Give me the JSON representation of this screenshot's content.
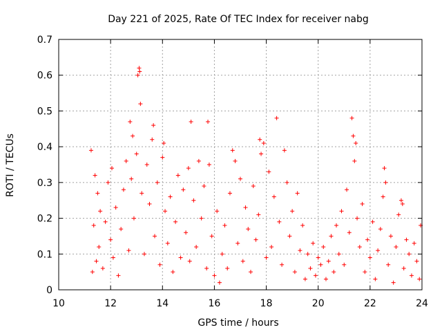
{
  "chart_data": {
    "type": "scatter",
    "title": "Day 221 of 2025, Rate Of TEC Index for receiver nabg",
    "xlabel": "GPS time / hours",
    "ylabel": "ROTI / TECUs",
    "xlim": [
      10,
      24
    ],
    "ylim": [
      0,
      0.7
    ],
    "xticks": [
      10,
      12,
      14,
      16,
      18,
      20,
      22,
      24
    ],
    "yticks": [
      0,
      0.1,
      0.2,
      0.3,
      0.4,
      0.5,
      0.6,
      0.7
    ],
    "grid": true,
    "marker": "+",
    "color": "#ff0000",
    "series": [
      {
        "points": [
          [
            11.25,
            0.39
          ],
          [
            11.3,
            0.05
          ],
          [
            11.35,
            0.18
          ],
          [
            11.4,
            0.32
          ],
          [
            11.45,
            0.08
          ],
          [
            11.5,
            0.27
          ],
          [
            11.55,
            0.12
          ],
          [
            11.6,
            0.22
          ],
          [
            11.7,
            0.06
          ],
          [
            11.8,
            0.19
          ],
          [
            11.9,
            0.3
          ],
          [
            12.0,
            0.14
          ],
          [
            12.05,
            0.34
          ],
          [
            12.1,
            0.09
          ],
          [
            12.2,
            0.23
          ],
          [
            12.3,
            0.04
          ],
          [
            12.4,
            0.17
          ],
          [
            12.5,
            0.28
          ],
          [
            12.6,
            0.36
          ],
          [
            12.7,
            0.11
          ],
          [
            12.75,
            0.47
          ],
          [
            12.8,
            0.31
          ],
          [
            12.85,
            0.43
          ],
          [
            12.9,
            0.2
          ],
          [
            13.0,
            0.38
          ],
          [
            13.05,
            0.6
          ],
          [
            13.1,
            0.62
          ],
          [
            13.12,
            0.61
          ],
          [
            13.15,
            0.52
          ],
          [
            13.2,
            0.27
          ],
          [
            13.3,
            0.1
          ],
          [
            13.4,
            0.35
          ],
          [
            13.5,
            0.24
          ],
          [
            13.6,
            0.42
          ],
          [
            13.65,
            0.46
          ],
          [
            13.7,
            0.15
          ],
          [
            13.8,
            0.3
          ],
          [
            13.9,
            0.07
          ],
          [
            14.0,
            0.37
          ],
          [
            14.05,
            0.41
          ],
          [
            14.1,
            0.22
          ],
          [
            14.2,
            0.13
          ],
          [
            14.3,
            0.26
          ],
          [
            14.4,
            0.05
          ],
          [
            14.5,
            0.19
          ],
          [
            14.6,
            0.32
          ],
          [
            14.7,
            0.09
          ],
          [
            14.8,
            0.28
          ],
          [
            14.9,
            0.16
          ],
          [
            15.0,
            0.34
          ],
          [
            15.05,
            0.08
          ],
          [
            15.1,
            0.47
          ],
          [
            15.2,
            0.25
          ],
          [
            15.3,
            0.12
          ],
          [
            15.4,
            0.36
          ],
          [
            15.5,
            0.2
          ],
          [
            15.6,
            0.29
          ],
          [
            15.7,
            0.06
          ],
          [
            15.75,
            0.47
          ],
          [
            15.8,
            0.35
          ],
          [
            15.9,
            0.15
          ],
          [
            16.0,
            0.04
          ],
          [
            16.1,
            0.22
          ],
          [
            16.2,
            0.02
          ],
          [
            16.3,
            0.1
          ],
          [
            16.4,
            0.18
          ],
          [
            16.5,
            0.06
          ],
          [
            16.6,
            0.27
          ],
          [
            16.7,
            0.39
          ],
          [
            16.8,
            0.36
          ],
          [
            16.9,
            0.13
          ],
          [
            17.0,
            0.31
          ],
          [
            17.1,
            0.08
          ],
          [
            17.2,
            0.23
          ],
          [
            17.3,
            0.17
          ],
          [
            17.4,
            0.05
          ],
          [
            17.5,
            0.29
          ],
          [
            17.6,
            0.14
          ],
          [
            17.7,
            0.21
          ],
          [
            17.75,
            0.42
          ],
          [
            17.8,
            0.38
          ],
          [
            17.9,
            0.41
          ],
          [
            18.0,
            0.09
          ],
          [
            18.1,
            0.33
          ],
          [
            18.2,
            0.12
          ],
          [
            18.3,
            0.26
          ],
          [
            18.4,
            0.48
          ],
          [
            18.5,
            0.19
          ],
          [
            18.6,
            0.07
          ],
          [
            18.7,
            0.39
          ],
          [
            18.8,
            0.3
          ],
          [
            18.9,
            0.15
          ],
          [
            19.0,
            0.22
          ],
          [
            19.1,
            0.05
          ],
          [
            19.2,
            0.27
          ],
          [
            19.3,
            0.11
          ],
          [
            19.4,
            0.18
          ],
          [
            19.5,
            0.03
          ],
          [
            19.6,
            0.1
          ],
          [
            19.7,
            0.06
          ],
          [
            19.8,
            0.13
          ],
          [
            19.9,
            0.04
          ],
          [
            20.0,
            0.09
          ],
          [
            20.1,
            0.07
          ],
          [
            20.2,
            0.12
          ],
          [
            20.3,
            0.03
          ],
          [
            20.4,
            0.08
          ],
          [
            20.5,
            0.15
          ],
          [
            20.6,
            0.05
          ],
          [
            20.7,
            0.18
          ],
          [
            20.8,
            0.1
          ],
          [
            20.9,
            0.22
          ],
          [
            21.0,
            0.07
          ],
          [
            21.1,
            0.28
          ],
          [
            21.2,
            0.16
          ],
          [
            21.3,
            0.48
          ],
          [
            21.35,
            0.43
          ],
          [
            21.4,
            0.36
          ],
          [
            21.45,
            0.41
          ],
          [
            21.5,
            0.2
          ],
          [
            21.6,
            0.12
          ],
          [
            21.7,
            0.24
          ],
          [
            21.8,
            0.05
          ],
          [
            21.9,
            0.14
          ],
          [
            22.0,
            0.09
          ],
          [
            22.1,
            0.19
          ],
          [
            22.2,
            0.03
          ],
          [
            22.3,
            0.11
          ],
          [
            22.4,
            0.17
          ],
          [
            22.5,
            0.26
          ],
          [
            22.55,
            0.34
          ],
          [
            22.6,
            0.3
          ],
          [
            22.7,
            0.07
          ],
          [
            22.8,
            0.15
          ],
          [
            22.9,
            0.02
          ],
          [
            23.0,
            0.12
          ],
          [
            23.1,
            0.21
          ],
          [
            23.2,
            0.25
          ],
          [
            23.25,
            0.24
          ],
          [
            23.3,
            0.06
          ],
          [
            23.4,
            0.14
          ],
          [
            23.5,
            0.1
          ],
          [
            23.6,
            0.04
          ],
          [
            23.7,
            0.13
          ],
          [
            23.8,
            0.08
          ],
          [
            23.9,
            0.03
          ],
          [
            23.95,
            0.18
          ]
        ]
      }
    ]
  }
}
